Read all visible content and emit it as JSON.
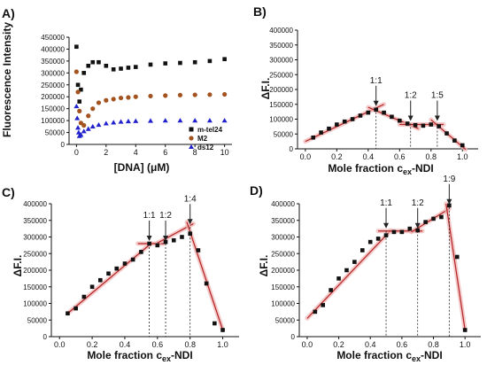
{
  "chart_data": [
    {
      "panel": "A)",
      "type": "scatter",
      "title": "",
      "xlabel": "[DNA] (μM)",
      "ylabel": "Fluorescence Intensity",
      "xlim": [
        -0.5,
        10.5
      ],
      "ylim": [
        0,
        450000
      ],
      "xticks": [
        0,
        2,
        4,
        6,
        8,
        10
      ],
      "yticks": [
        0,
        50000,
        100000,
        150000,
        200000,
        250000,
        300000,
        350000,
        400000,
        450000
      ],
      "legend_position": "bottom-right",
      "series": [
        {
          "name": "m-tel24",
          "color": "#111111",
          "marker": "square",
          "x": [
            0,
            0.1,
            0.2,
            0.3,
            0.5,
            0.8,
            1.1,
            1.5,
            2,
            2.5,
            3,
            3.5,
            4,
            5,
            6,
            7,
            8,
            9,
            10
          ],
          "y": [
            410000,
            250000,
            180000,
            230000,
            300000,
            330000,
            345000,
            345000,
            330000,
            315000,
            318000,
            322000,
            325000,
            335000,
            340000,
            342000,
            345000,
            350000,
            358000
          ]
        },
        {
          "name": "M2",
          "color": "#a3531f",
          "marker": "circle",
          "x": [
            0,
            0.1,
            0.2,
            0.3,
            0.5,
            0.8,
            1.1,
            1.5,
            2,
            2.5,
            3,
            3.5,
            4,
            5,
            6,
            7,
            8,
            9,
            10
          ],
          "y": [
            305000,
            220000,
            140000,
            90000,
            80000,
            120000,
            150000,
            175000,
            185000,
            190000,
            195000,
            197000,
            200000,
            203000,
            205000,
            207000,
            208000,
            209000,
            210000
          ]
        },
        {
          "name": "ds12",
          "color": "#2222cc",
          "marker": "triangle",
          "x": [
            0,
            0.05,
            0.1,
            0.15,
            0.2,
            0.3,
            0.5,
            0.8,
            1.1,
            1.5,
            2,
            2.5,
            3,
            3.5,
            4,
            5,
            6,
            7,
            8,
            9,
            10
          ],
          "y": [
            160000,
            110000,
            70000,
            50000,
            35000,
            40000,
            55000,
            65000,
            75000,
            82000,
            88000,
            92000,
            95000,
            97000,
            98000,
            99000,
            100000,
            100000,
            100000,
            100000,
            100000
          ]
        }
      ]
    },
    {
      "panel": "B)",
      "type": "scatter",
      "title": "",
      "xlabel": "Mole fraction c",
      "xlabel_sub": "ex",
      "xlabel_suffix": "-NDI",
      "ylabel": "ΔF.I.",
      "xlim": [
        -0.05,
        1.1
      ],
      "ylim": [
        0,
        400000
      ],
      "xticks": [
        0,
        0.2,
        0.4,
        0.6,
        0.8,
        1.0
      ],
      "xtick_labels": [
        "0.0",
        "0.2",
        "0.4",
        "0.6",
        "0.8",
        "1.0"
      ],
      "yticks": [
        0,
        50000,
        100000,
        150000,
        200000,
        250000,
        300000,
        350000,
        400000
      ],
      "series": [
        {
          "name": "",
          "color": "#111111",
          "marker": "square",
          "x": [
            0.05,
            0.1,
            0.15,
            0.2,
            0.25,
            0.3,
            0.35,
            0.4,
            0.45,
            0.5,
            0.55,
            0.6,
            0.65,
            0.7,
            0.75,
            0.8,
            0.85,
            0.9,
            0.95,
            1.0
          ],
          "y": [
            38000,
            55000,
            68000,
            82000,
            92000,
            100000,
            112000,
            122000,
            132000,
            122000,
            108000,
            95000,
            85000,
            80000,
            78000,
            82000,
            76000,
            52000,
            28000,
            12000
          ]
        }
      ],
      "fit_lines": [
        {
          "x": [
            0.0,
            0.5
          ],
          "y": [
            25000,
            150000
          ]
        },
        {
          "x": [
            0.4,
            0.72
          ],
          "y": [
            140000,
            68000
          ]
        },
        {
          "x": [
            0.6,
            0.88
          ],
          "y": [
            82000,
            82000
          ]
        },
        {
          "x": [
            0.8,
            1.02
          ],
          "y": [
            98000,
            -2000
          ]
        }
      ],
      "markers": [
        {
          "label": "1:1",
          "x": 0.45,
          "y": 135000
        },
        {
          "label": "1:2",
          "x": 0.67,
          "y": 85000
        },
        {
          "label": "1:5",
          "x": 0.84,
          "y": 85000
        }
      ]
    },
    {
      "panel": "C)",
      "type": "scatter",
      "title": "",
      "xlabel": "Mole fraction c",
      "xlabel_sub": "ex",
      "xlabel_suffix": "-NDI",
      "ylabel": "ΔF.I.",
      "xlim": [
        -0.05,
        1.1
      ],
      "ylim": [
        0,
        400000
      ],
      "xticks": [
        0,
        0.2,
        0.4,
        0.6,
        0.8,
        1.0
      ],
      "xtick_labels": [
        "0.0",
        "0.2",
        "0.4",
        "0.6",
        "0.8",
        "1.0"
      ],
      "yticks": [
        0,
        50000,
        100000,
        150000,
        200000,
        250000,
        300000,
        350000,
        400000
      ],
      "series": [
        {
          "name": "",
          "color": "#111111",
          "marker": "square",
          "x": [
            0.05,
            0.1,
            0.15,
            0.2,
            0.25,
            0.3,
            0.35,
            0.4,
            0.45,
            0.5,
            0.55,
            0.6,
            0.65,
            0.7,
            0.75,
            0.8,
            0.85,
            0.9,
            0.95,
            1.0
          ],
          "y": [
            70000,
            85000,
            120000,
            150000,
            170000,
            190000,
            205000,
            220000,
            232000,
            255000,
            280000,
            275000,
            285000,
            290000,
            300000,
            310000,
            260000,
            160000,
            40000,
            20000
          ]
        }
      ],
      "fit_lines": [
        {
          "x": [
            0.05,
            0.56
          ],
          "y": [
            70000,
            280000
          ]
        },
        {
          "x": [
            0.48,
            0.64
          ],
          "y": [
            280000,
            280000
          ]
        },
        {
          "x": [
            0.6,
            0.82
          ],
          "y": [
            282000,
            340000
          ]
        },
        {
          "x": [
            0.78,
            1.0
          ],
          "y": [
            345000,
            20000
          ]
        }
      ],
      "markers": [
        {
          "label": "1:1",
          "x": 0.55,
          "y": 280000
        },
        {
          "label": "1:2",
          "x": 0.65,
          "y": 280000
        },
        {
          "label": "1:4",
          "x": 0.8,
          "y": 330000
        }
      ]
    },
    {
      "panel": "D)",
      "type": "scatter",
      "title": "",
      "xlabel": "Mole fraction c",
      "xlabel_sub": "ex",
      "xlabel_suffix": "-NDI",
      "ylabel": "ΔF.I.",
      "xlim": [
        -0.05,
        1.1
      ],
      "ylim": [
        0,
        400000
      ],
      "xticks": [
        0,
        0.2,
        0.4,
        0.6,
        0.8,
        1.0
      ],
      "xtick_labels": [
        "0.0",
        "0.2",
        "0.4",
        "0.6",
        "0.8",
        "1.0"
      ],
      "yticks": [
        0,
        50000,
        100000,
        150000,
        200000,
        250000,
        300000,
        350000,
        400000
      ],
      "series": [
        {
          "name": "",
          "color": "#111111",
          "marker": "square",
          "x": [
            0.05,
            0.1,
            0.15,
            0.2,
            0.25,
            0.3,
            0.35,
            0.4,
            0.45,
            0.5,
            0.55,
            0.6,
            0.65,
            0.7,
            0.75,
            0.8,
            0.85,
            0.9,
            0.95,
            1.0
          ],
          "y": [
            75000,
            95000,
            140000,
            175000,
            200000,
            225000,
            260000,
            285000,
            295000,
            305000,
            315000,
            315000,
            325000,
            320000,
            345000,
            355000,
            360000,
            395000,
            240000,
            20000
          ]
        }
      ],
      "fit_lines": [
        {
          "x": [
            0.0,
            0.53
          ],
          "y": [
            55000,
            320000
          ]
        },
        {
          "x": [
            0.45,
            0.73
          ],
          "y": [
            318000,
            318000
          ]
        },
        {
          "x": [
            0.66,
            0.9
          ],
          "y": [
            315000,
            385000
          ]
        },
        {
          "x": [
            0.88,
            1.0
          ],
          "y": [
            400000,
            20000
          ]
        }
      ],
      "markers": [
        {
          "label": "1:1",
          "x": 0.5,
          "y": 318000
        },
        {
          "label": "1:2",
          "x": 0.7,
          "y": 318000
        },
        {
          "label": "1:9",
          "x": 0.9,
          "y": 390000
        }
      ]
    }
  ],
  "colors": {
    "fit_line": "#b22222",
    "fit_halo": "#f2b8b8",
    "points": "#111111",
    "axis": "#111111"
  }
}
